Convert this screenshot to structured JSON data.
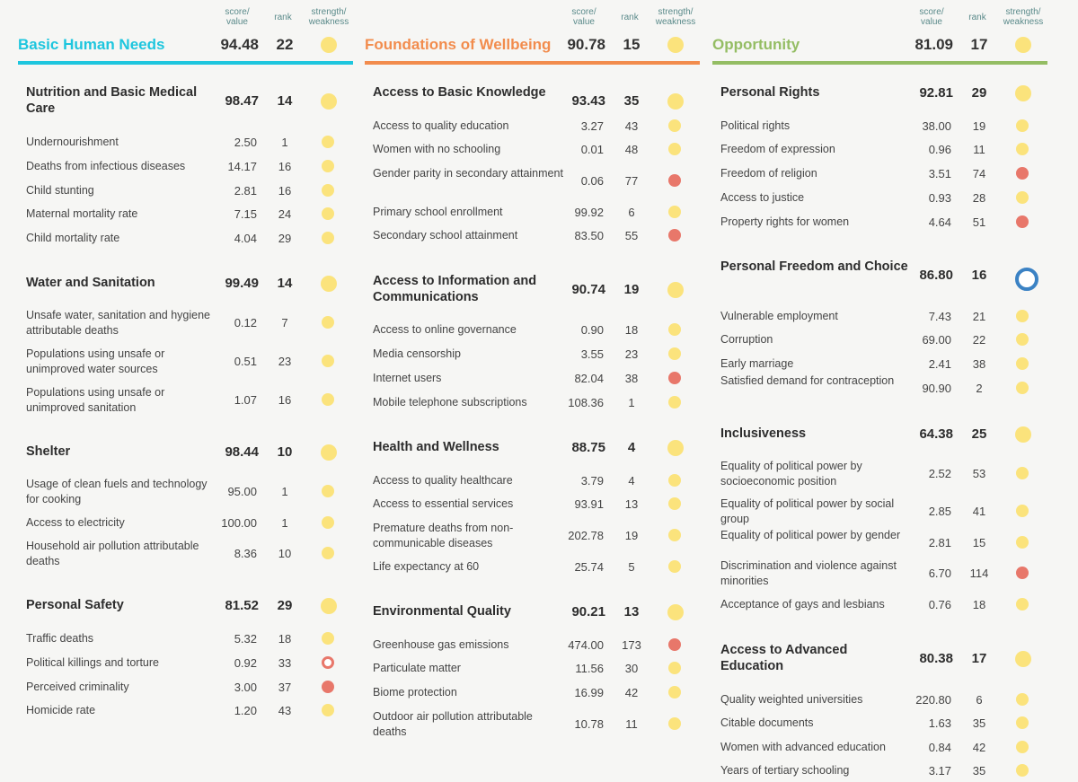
{
  "header_labels": {
    "score": "score/\nvalue",
    "rank": "rank",
    "sw": "strength/\nweakness"
  },
  "colors": {
    "bhn": "#1ec6de",
    "fow": "#f28c4d",
    "opp": "#94bd63",
    "strength": "#fbe37c",
    "weakness": "#e8776a",
    "neutral": "#3b82c4"
  },
  "columns": [
    {
      "title": "Basic Human Needs",
      "score": "94.48",
      "rank": "22",
      "status": "yellow",
      "components": [
        {
          "title": "Nutrition and Basic Medical Care",
          "score": "98.47",
          "rank": "14",
          "status": "yellow",
          "indicators": [
            {
              "name": "Undernourishment",
              "value": "2.50",
              "rank": "1",
              "status": "yellow"
            },
            {
              "name": "Deaths from infectious diseases",
              "value": "14.17",
              "rank": "16",
              "status": "yellow"
            },
            {
              "name": "Child stunting",
              "value": "2.81",
              "rank": "16",
              "status": "yellow"
            },
            {
              "name": "Maternal mortality rate",
              "value": "7.15",
              "rank": "24",
              "status": "yellow"
            },
            {
              "name": "Child mortality rate",
              "value": "4.04",
              "rank": "29",
              "status": "yellow"
            }
          ]
        },
        {
          "title": "Water and Sanitation",
          "score": "99.49",
          "rank": "14",
          "status": "yellow",
          "indicators": [
            {
              "name": "Unsafe water, sanitation and hygiene attributable deaths",
              "value": "0.12",
              "rank": "7",
              "status": "yellow"
            },
            {
              "name": "Populations using unsafe or unimproved water sources",
              "value": "0.51",
              "rank": "23",
              "status": "yellow"
            },
            {
              "name": "Populations using unsafe or unimproved sanitation",
              "value": "1.07",
              "rank": "16",
              "status": "yellow"
            }
          ]
        },
        {
          "title": "Shelter",
          "score": "98.44",
          "rank": "10",
          "status": "yellow",
          "indicators": [
            {
              "name": "Usage of clean fuels and technology for cooking",
              "value": "95.00",
              "rank": "1",
              "status": "yellow"
            },
            {
              "name": "Access to electricity",
              "value": "100.00",
              "rank": "1",
              "status": "yellow"
            },
            {
              "name": "Household air pollution attributable deaths",
              "value": "8.36",
              "rank": "10",
              "status": "yellow"
            }
          ]
        },
        {
          "title": "Personal Safety",
          "score": "81.52",
          "rank": "29",
          "status": "yellow",
          "indicators": [
            {
              "name": "Traffic deaths",
              "value": "5.32",
              "rank": "18",
              "status": "yellow"
            },
            {
              "name": "Political killings and torture",
              "value": "0.92",
              "rank": "33",
              "status": "hollow-red"
            },
            {
              "name": "Perceived criminality",
              "value": "3.00",
              "rank": "37",
              "status": "red"
            },
            {
              "name": "Homicide rate",
              "value": "1.20",
              "rank": "43",
              "status": "yellow"
            }
          ]
        }
      ]
    },
    {
      "title": "Foundations of Wellbeing",
      "score": "90.78",
      "rank": "15",
      "status": "yellow",
      "components": [
        {
          "title": "Access to Basic Knowledge",
          "score": "93.43",
          "rank": "35",
          "status": "yellow",
          "indicators": [
            {
              "name": "Access to quality education",
              "value": "3.27",
              "rank": "43",
              "status": "yellow"
            },
            {
              "name": "Women with no schooling",
              "value": "0.01",
              "rank": "48",
              "status": "yellow"
            },
            {
              "name": "Gender parity in secondary attainment",
              "value": "0.06",
              "rank": "77",
              "status": "red"
            },
            {
              "name": "Primary school enrollment",
              "value": "99.92",
              "rank": "6",
              "status": "yellow"
            },
            {
              "name": "Secondary school attainment",
              "value": "83.50",
              "rank": "55",
              "status": "red"
            }
          ]
        },
        {
          "title": "Access to Information and Communications",
          "score": "90.74",
          "rank": "19",
          "status": "yellow",
          "indicators": [
            {
              "name": "Access to online governance",
              "value": "0.90",
              "rank": "18",
              "status": "yellow"
            },
            {
              "name": "Media censorship",
              "value": "3.55",
              "rank": "23",
              "status": "yellow"
            },
            {
              "name": "Internet users",
              "value": "82.04",
              "rank": "38",
              "status": "red"
            },
            {
              "name": "Mobile telephone subscriptions",
              "value": "108.36",
              "rank": "1",
              "status": "yellow"
            }
          ]
        },
        {
          "title": "Health and Wellness",
          "score": "88.75",
          "rank": "4",
          "status": "yellow",
          "indicators": [
            {
              "name": "Access to quality healthcare",
              "value": "3.79",
              "rank": "4",
              "status": "yellow"
            },
            {
              "name": "Access to essential services",
              "value": "93.91",
              "rank": "13",
              "status": "yellow"
            },
            {
              "name": "Premature deaths from non-communicable diseases",
              "value": "202.78",
              "rank": "19",
              "status": "yellow"
            },
            {
              "name": "Life expectancy at 60",
              "value": "25.74",
              "rank": "5",
              "status": "yellow"
            }
          ]
        },
        {
          "title": "Environmental Quality",
          "score": "90.21",
          "rank": "13",
          "status": "yellow",
          "indicators": [
            {
              "name": "Greenhouse gas emissions",
              "value": "474.00",
              "rank": "173",
              "status": "red"
            },
            {
              "name": "Particulate matter",
              "value": "11.56",
              "rank": "30",
              "status": "yellow"
            },
            {
              "name": "Biome protection",
              "value": "16.99",
              "rank": "42",
              "status": "yellow"
            },
            {
              "name": "Outdoor air pollution attributable deaths",
              "value": "10.78",
              "rank": "11",
              "status": "yellow"
            }
          ]
        }
      ]
    },
    {
      "title": "Opportunity",
      "score": "81.09",
      "rank": "17",
      "status": "yellow",
      "components": [
        {
          "title": "Personal Rights",
          "score": "92.81",
          "rank": "29",
          "status": "yellow",
          "indicators": [
            {
              "name": "Political rights",
              "value": "38.00",
              "rank": "19",
              "status": "yellow"
            },
            {
              "name": "Freedom of expression",
              "value": "0.96",
              "rank": "11",
              "status": "yellow"
            },
            {
              "name": "Freedom of religion",
              "value": "3.51",
              "rank": "74",
              "status": "red"
            },
            {
              "name": "Access to justice",
              "value": "0.93",
              "rank": "28",
              "status": "yellow"
            },
            {
              "name": "Property rights for women",
              "value": "4.64",
              "rank": "51",
              "status": "red"
            }
          ]
        },
        {
          "title": "Personal Freedom and Choice",
          "score": "86.80",
          "rank": "16",
          "status": "hollow-blue",
          "indicators": [
            {
              "name": "Vulnerable employment",
              "value": "7.43",
              "rank": "21",
              "status": "yellow"
            },
            {
              "name": "Corruption",
              "value": "69.00",
              "rank": "22",
              "status": "yellow"
            },
            {
              "name": "Early marriage",
              "value": "2.41",
              "rank": "38",
              "status": "yellow"
            },
            {
              "name": "Satisfied demand for contraception",
              "value": "90.90",
              "rank": "2",
              "status": "yellow"
            }
          ]
        },
        {
          "title": "Inclusiveness",
          "score": "64.38",
          "rank": "25",
          "status": "yellow",
          "indicators": [
            {
              "name": "Equality of political power by socioeconomic position",
              "value": "2.52",
              "rank": "53",
              "status": "yellow"
            },
            {
              "name": "Equality of political power by social group",
              "value": "2.85",
              "rank": "41",
              "status": "yellow"
            },
            {
              "name": "Equality of political power by gender",
              "value": "2.81",
              "rank": "15",
              "status": "yellow"
            },
            {
              "name": "Discrimination and violence against minorities",
              "value": "6.70",
              "rank": "114",
              "status": "red"
            },
            {
              "name": "Acceptance of gays and lesbians",
              "value": "0.76",
              "rank": "18",
              "status": "yellow"
            }
          ]
        },
        {
          "title": "Access to Advanced Education",
          "score": "80.38",
          "rank": "17",
          "status": "yellow",
          "indicators": [
            {
              "name": "Quality weighted universities",
              "value": "220.80",
              "rank": "6",
              "status": "yellow"
            },
            {
              "name": "Citable documents",
              "value": "1.63",
              "rank": "35",
              "status": "yellow"
            },
            {
              "name": "Women with advanced education",
              "value": "0.84",
              "rank": "42",
              "status": "yellow"
            },
            {
              "name": "Years of tertiary schooling",
              "value": "3.17",
              "rank": "35",
              "status": "yellow"
            }
          ]
        }
      ]
    }
  ]
}
